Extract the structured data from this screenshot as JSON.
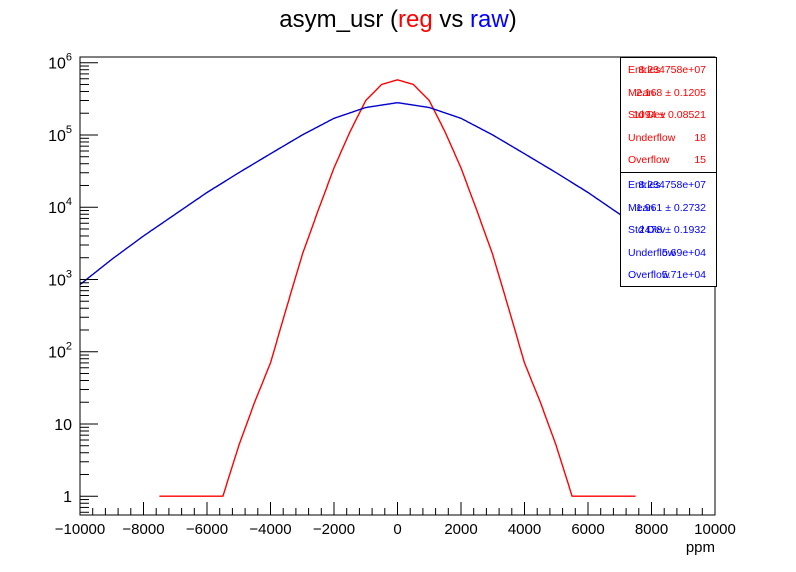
{
  "title": {
    "name": "asym_usr",
    "open": " (",
    "reg": "reg",
    "vs": " vs ",
    "raw": "raw",
    "close": ")"
  },
  "colors": {
    "reg": "#ff0000",
    "raw": "#0000cc"
  },
  "stats": {
    "reg": [
      {
        "key": "Entries",
        "value": "8.234758e+07"
      },
      {
        "key": "Mean",
        "value": "2.168  ± 0.1205"
      },
      {
        "key": "Std Dev",
        "value": "1094  ± 0.08521"
      },
      {
        "key": "Underflow",
        "value": "18"
      },
      {
        "key": "Overflow",
        "value": "15"
      }
    ],
    "raw": [
      {
        "key": "Entries",
        "value": "8.234758e+07"
      },
      {
        "key": "Mean",
        "value": "1.961 ± 0.2732"
      },
      {
        "key": "Std Dev",
        "value": "2478 ± 0.1932"
      },
      {
        "key": "Underflow",
        "value": "5.69e+04"
      },
      {
        "key": "Overflow",
        "value": "5.71e+04"
      }
    ]
  },
  "chart_data": {
    "type": "line",
    "title": "asym_usr (reg vs raw)",
    "xlabel": "ppm",
    "ylabel": "",
    "xlim": [
      -10000,
      10000
    ],
    "ylim": [
      0.55,
      1200000
    ],
    "y_scale": "log",
    "x_ticks": [
      "−10000",
      "−8000",
      "−6000",
      "−4000",
      "−2000",
      "0",
      "2000",
      "4000",
      "6000",
      "8000",
      "10000"
    ],
    "y_ticks": [
      {
        "base": "1",
        "exp": ""
      },
      {
        "base": "10",
        "exp": ""
      },
      {
        "base": "10",
        "exp": "2"
      },
      {
        "base": "10",
        "exp": "3"
      },
      {
        "base": "10",
        "exp": "4"
      },
      {
        "base": "10",
        "exp": "5"
      },
      {
        "base": "10",
        "exp": "6"
      }
    ],
    "grid": false,
    "legend": "top-right",
    "series": [
      {
        "name": "reg",
        "x": [
          -7500,
          -6000,
          -5500,
          -5000,
          -4500,
          -4000,
          -3500,
          -3000,
          -2500,
          -2000,
          -1500,
          -1000,
          -500,
          0,
          500,
          1000,
          1500,
          2000,
          2500,
          3000,
          3500,
          4000,
          4500,
          5000,
          5500,
          6000,
          7500
        ],
        "y": [
          1,
          1,
          1,
          5,
          20,
          70,
          400,
          2200,
          9000,
          35000,
          110000,
          300000,
          500000,
          580000,
          500000,
          300000,
          110000,
          35000,
          9000,
          2200,
          400,
          70,
          20,
          5,
          1,
          1,
          1
        ]
      },
      {
        "name": "raw",
        "x": [
          -10000,
          -9000,
          -8000,
          -7000,
          -6000,
          -5000,
          -4000,
          -3000,
          -2000,
          -1000,
          0,
          1000,
          2000,
          3000,
          4000,
          5000,
          6000,
          7000,
          7500
        ],
        "y": [
          850,
          1900,
          4000,
          8000,
          16000,
          30000,
          55000,
          100000,
          170000,
          240000,
          280000,
          240000,
          170000,
          100000,
          55000,
          30000,
          16000,
          8000,
          6000
        ]
      }
    ]
  }
}
